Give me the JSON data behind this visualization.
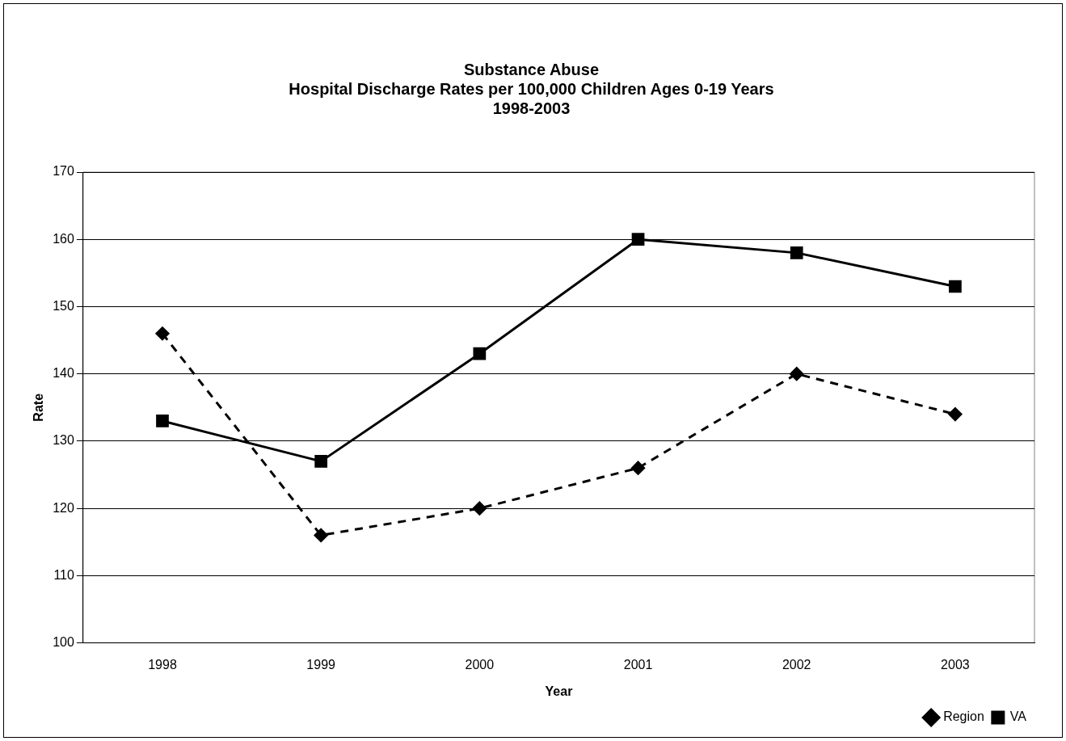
{
  "chart_data": {
    "type": "line",
    "title": "Substance Abuse\nHospital Discharge Rates per 100,000 Children Ages 0-19 Years\n1998-2003",
    "xlabel": "Year",
    "ylabel": "Rate",
    "categories": [
      "1998",
      "1999",
      "2000",
      "2001",
      "2002",
      "2003"
    ],
    "series": [
      {
        "name": "Region",
        "color": "#000000",
        "values": [
          146,
          116,
          120,
          126,
          140,
          134
        ],
        "marker": "diamond",
        "line_style": "dashed"
      },
      {
        "name": "VA",
        "color": "#000000",
        "values": [
          133,
          127,
          143,
          160,
          158,
          153
        ],
        "marker": "square",
        "line_style": "solid"
      }
    ],
    "ylim": [
      100,
      170
    ],
    "yticks": [
      100,
      110,
      120,
      130,
      140,
      150,
      160,
      170
    ],
    "grid": "y",
    "legend": "bottom right"
  }
}
